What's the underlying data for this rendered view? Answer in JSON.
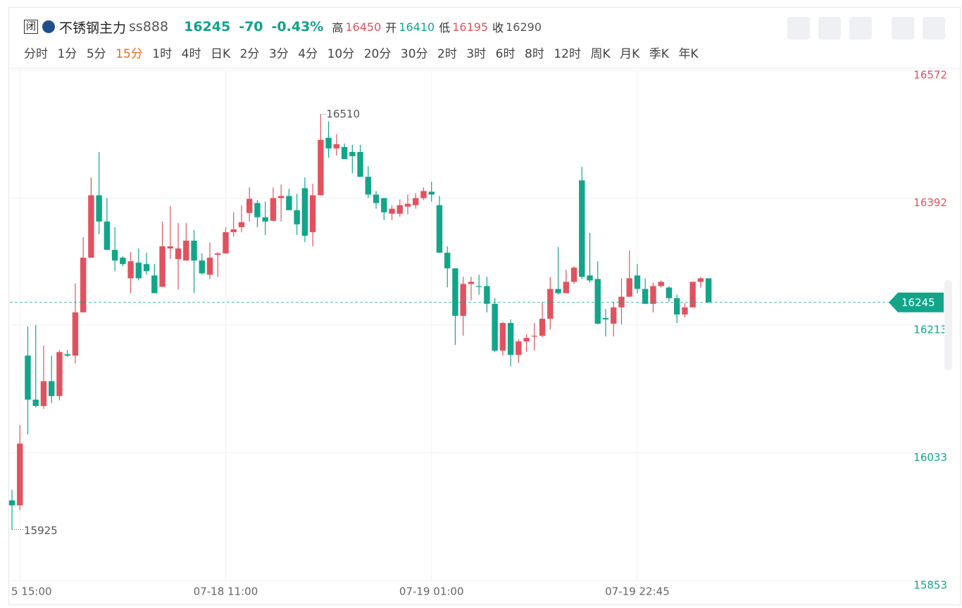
{
  "header": {
    "status": "闭",
    "name": "不锈钢主力",
    "code": "ss888",
    "change": "-70",
    "change_pct": "-0.43%",
    "stats": [
      {
        "label": "高",
        "value": "16450"
      },
      {
        "label": "开",
        "value": "16410"
      },
      {
        "label": "低",
        "value": "16195"
      },
      {
        "label": "收",
        "value": "16290"
      }
    ],
    "periods": [
      "分时",
      "1分",
      "5分",
      "15分",
      "1时",
      "4时",
      "日K",
      "2分",
      "3分",
      "4分",
      "10分",
      "20分",
      "30分",
      "2时",
      "3时",
      "6时",
      "8时",
      "12时",
      "周K",
      "月K",
      "季K",
      "年K"
    ],
    "active_period": 3
  },
  "chart_data": {
    "type": "candlestick",
    "last_price": 16245,
    "up_color": "#e1525e",
    "down_color": "#12a58a",
    "ylim": [
      15853,
      16572
    ],
    "yticks": [
      15853,
      16033,
      16213,
      16392,
      16572
    ],
    "categories": [
      null,
      "5 15:00",
      null,
      null,
      null,
      null,
      null,
      null,
      null,
      null,
      null,
      null,
      null,
      null,
      null,
      null,
      null,
      null,
      null,
      null,
      null,
      null,
      null,
      null,
      null,
      null,
      null,
      "07-18 11:00",
      null,
      null,
      null,
      null,
      null,
      null,
      null,
      null,
      null,
      null,
      null,
      null,
      null,
      null,
      null,
      null,
      null,
      null,
      null,
      null,
      null,
      null,
      null,
      null,
      null,
      "07-19 01:00",
      null,
      null,
      null,
      null,
      null,
      null,
      null,
      null,
      null,
      null,
      null,
      null,
      null,
      null,
      null,
      null,
      null,
      null,
      null,
      null,
      null,
      null,
      null,
      null,
      null,
      "07-19 22:45",
      null,
      null,
      null,
      null,
      null,
      null,
      null,
      null,
      null
    ],
    "open": [
      15966,
      15959,
      16170,
      16108,
      16099,
      16134,
      16113,
      16172,
      16170,
      16231,
      16308,
      16396,
      16359,
      16319,
      16308,
      16279,
      16301,
      16299,
      16283,
      16267,
      16321,
      16306,
      16304,
      16332,
      16304,
      16284,
      16312,
      16314,
      16344,
      16351,
      16371,
      16385,
      16365,
      16360,
      16392,
      16395,
      16375,
      16406,
      16344,
      16396,
      16477,
      16462,
      16464,
      16457,
      16457,
      16422,
      16397,
      16392,
      16370,
      16370,
      16380,
      16382,
      16392,
      16401,
      16382,
      16315,
      16293,
      16226,
      16271,
      16268,
      16268,
      16243,
      16177,
      16216,
      16171,
      16190,
      16197,
      16198,
      16222,
      16264,
      16258,
      16274,
      16417,
      16283,
      16278,
      16223,
      16215,
      16238,
      16253,
      16283,
      16264,
      16243,
      16268,
      16266,
      16251,
      16228,
      16238,
      16274,
      16279
    ],
    "high": [
      15981,
      16072,
      16211,
      16213,
      16184,
      16170,
      16178,
      16178,
      16272,
      16337,
      16421,
      16457,
      16392,
      16351,
      16310,
      16316,
      16321,
      16315,
      16299,
      16359,
      16381,
      16357,
      16357,
      16347,
      16314,
      16329,
      16316,
      16351,
      16372,
      16382,
      16407,
      16389,
      16387,
      16407,
      16411,
      16405,
      16398,
      16421,
      16412,
      16510,
      16500,
      16482,
      16469,
      16467,
      16467,
      16437,
      16402,
      16392,
      16382,
      16390,
      16397,
      16399,
      16407,
      16415,
      16395,
      16324,
      16293,
      16281,
      16281,
      16284,
      16281,
      16251,
      16218,
      16221,
      16193,
      16200,
      16216,
      16246,
      16281,
      16323,
      16291,
      16296,
      16436,
      16343,
      16303,
      16236,
      16246,
      16279,
      16318,
      16299,
      16279,
      16273,
      16276,
      16268,
      16256,
      16244,
      16274,
      16281,
      16279
    ],
    "low": [
      15925,
      15952,
      16059,
      16097,
      16095,
      16103,
      16107,
      16168,
      16159,
      16231,
      16308,
      16341,
      16319,
      16289,
      16296,
      16258,
      16276,
      16284,
      16258,
      16267,
      16306,
      16263,
      16304,
      16258,
      16284,
      16278,
      16281,
      16314,
      16338,
      16344,
      16359,
      16351,
      16340,
      16359,
      16359,
      16375,
      16340,
      16330,
      16324,
      16396,
      16449,
      16452,
      16447,
      16427,
      16422,
      16392,
      16377,
      16361,
      16361,
      16366,
      16369,
      16377,
      16389,
      16387,
      16315,
      16266,
      16185,
      16198,
      16248,
      16256,
      16231,
      16175,
      16170,
      16155,
      16160,
      16175,
      16177,
      16196,
      16207,
      16256,
      16258,
      16271,
      16278,
      16273,
      16214,
      16197,
      16197,
      16214,
      16253,
      16258,
      16243,
      16231,
      16266,
      16246,
      16216,
      16224,
      16238,
      16266,
      16245
    ],
    "close": [
      15959,
      16046,
      16108,
      16099,
      16134,
      16113,
      16175,
      16170,
      16231,
      16308,
      16396,
      16359,
      16319,
      16304,
      16299,
      16303,
      16279,
      16289,
      16258,
      16324,
      16324,
      16321,
      16332,
      16304,
      16286,
      16308,
      16314,
      16344,
      16348,
      16358,
      16391,
      16365,
      16359,
      16392,
      16395,
      16375,
      16355,
      16339,
      16396,
      16474,
      16462,
      16468,
      16447,
      16451,
      16422,
      16397,
      16385,
      16372,
      16377,
      16382,
      16384,
      16392,
      16402,
      16397,
      16315,
      16293,
      16226,
      16271,
      16274,
      16267,
      16243,
      16177,
      16216,
      16171,
      16190,
      16195,
      16198,
      16222,
      16264,
      16258,
      16274,
      16294,
      16281,
      16276,
      16215,
      16221,
      16238,
      16253,
      16279,
      16264,
      16243,
      16268,
      16274,
      16251,
      16228,
      16238,
      16274,
      16279,
      16245
    ]
  }
}
